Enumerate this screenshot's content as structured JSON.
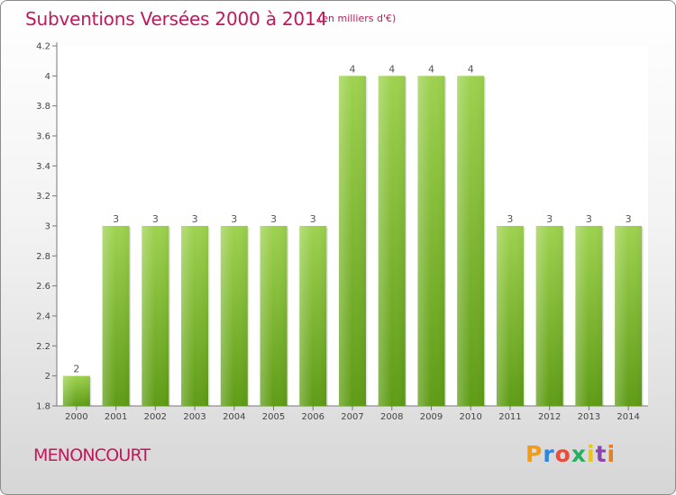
{
  "header": {
    "title": "Subventions Versées 2000 à 2014",
    "subtitle": "(en milliers d'€)"
  },
  "footer": {
    "commune": "MENONCOURT",
    "logo_text": "Proxiti",
    "logo_colors": [
      "#f39c12",
      "#2e86de",
      "#e74c3c",
      "#27ae60",
      "#f1c40f",
      "#8e44ad",
      "#e67e22"
    ]
  },
  "colors": {
    "title": "#c2185b",
    "bar_top": "#9ed24f",
    "bar_bottom": "#5f9c16"
  },
  "chart_data": {
    "type": "bar",
    "title": "Subventions Versées 2000 à 2014",
    "subtitle": "(en milliers d'€)",
    "xlabel": "",
    "ylabel": "",
    "categories": [
      "2000",
      "2001",
      "2002",
      "2003",
      "2004",
      "2005",
      "2006",
      "2007",
      "2008",
      "2009",
      "2010",
      "2011",
      "2012",
      "2013",
      "2014"
    ],
    "values": [
      2,
      3,
      3,
      3,
      3,
      3,
      3,
      4,
      4,
      4,
      4,
      3,
      3,
      3,
      3
    ],
    "data_labels": [
      "2",
      "3",
      "3",
      "3",
      "3",
      "3",
      "3",
      "4",
      "4",
      "4",
      "4",
      "3",
      "3",
      "3",
      "3"
    ],
    "ylim": [
      1.8,
      4.2
    ],
    "yticks": [
      1.8,
      2,
      2.2,
      2.4,
      2.6,
      2.8,
      3,
      3.2,
      3.4,
      3.6,
      3.8,
      4,
      4.2
    ],
    "ytick_labels": [
      "1.8",
      "2",
      "2.2",
      "2.4",
      "2.6",
      "2.8",
      "3",
      "3.2",
      "3.4",
      "3.6",
      "3.8",
      "4",
      "4.2"
    ],
    "grid": false,
    "legend": "none"
  }
}
